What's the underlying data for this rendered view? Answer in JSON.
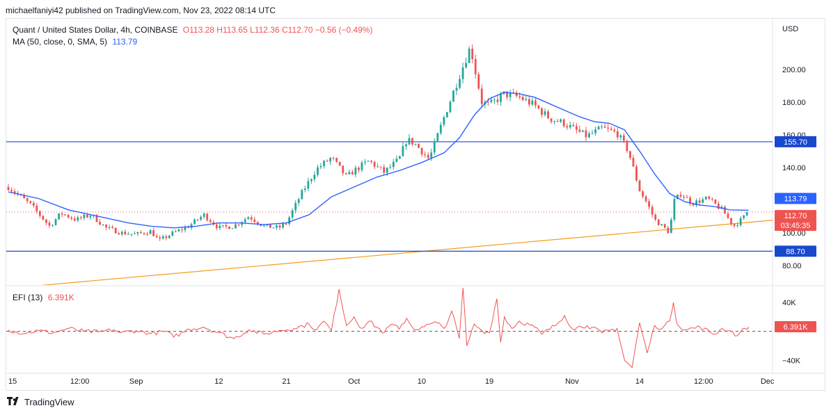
{
  "publisher": "michaelfaniyi42 published on TradingView.com, Nov 23, 2022 08:14 UTC",
  "footer": {
    "brand": "TradingView",
    "logo_icon": "tradingview-logo-icon"
  },
  "legend": {
    "symbol": "Quant / United States Dollar, 4h, COINBASE",
    "open": "O113.28",
    "high": "H113.65",
    "low": "L112.36",
    "close": "C112.70",
    "change": "−0.56 (−0.49%)",
    "ma_label": "MA (50, close, 0, SMA, 5)",
    "ma_value": "113.79",
    "efi_label": "EFI (13)",
    "efi_value": "6.391K"
  },
  "colors": {
    "up": "#26a69a",
    "down": "#ef5350",
    "ma": "#2962ff",
    "trendline": "#f59b1a",
    "level": "#1848cc",
    "efi": "#ef5350"
  },
  "chart_data": [
    {
      "type": "candlestick",
      "title": "Quant / United States Dollar, 4h, COINBASE",
      "currency": "USD",
      "ylim": [
        68,
        231
      ],
      "y_ticks": [
        80,
        100,
        140,
        160,
        180,
        200
      ],
      "y_tick_labels": [
        "80.00",
        "100.00",
        "140.00",
        "160.00",
        "180.00",
        "200.00"
      ],
      "x_ticks": [
        "15",
        "12:00",
        "Sep",
        "12",
        "21",
        "Oct",
        "10",
        "19",
        "Nov",
        "14",
        "12:00",
        "Dec"
      ],
      "x_tick_days": [
        0,
        9.5,
        17,
        28,
        37,
        46,
        55,
        64,
        75,
        84,
        92.5,
        101
      ],
      "x_start_date": "2022-08-15",
      "price_path": [
        [
          0,
          128
        ],
        [
          3,
          117
        ],
        [
          5.5,
          104
        ],
        [
          7,
          112
        ],
        [
          9,
          108
        ],
        [
          11,
          111
        ],
        [
          13,
          103
        ],
        [
          15,
          100
        ],
        [
          17,
          99
        ],
        [
          19,
          101
        ],
        [
          20,
          95
        ],
        [
          22,
          100
        ],
        [
          24,
          104
        ],
        [
          26,
          111
        ],
        [
          28,
          103
        ],
        [
          30,
          104
        ],
        [
          32,
          110
        ],
        [
          34,
          104
        ],
        [
          36,
          103
        ],
        [
          37,
          106
        ],
        [
          39,
          124
        ],
        [
          41,
          139
        ],
        [
          43,
          146
        ],
        [
          45,
          134
        ],
        [
          46,
          138
        ],
        [
          48,
          144
        ],
        [
          50,
          137
        ],
        [
          52,
          145
        ],
        [
          53,
          157
        ],
        [
          54,
          155
        ],
        [
          56,
          145
        ],
        [
          58,
          171
        ],
        [
          60,
          196
        ],
        [
          61.5,
          214
        ],
        [
          62,
          202
        ],
        [
          63,
          180
        ],
        [
          64,
          178
        ],
        [
          66,
          185
        ],
        [
          68,
          183
        ],
        [
          70,
          178
        ],
        [
          72,
          170
        ],
        [
          74,
          167
        ],
        [
          75,
          164
        ],
        [
          77,
          159
        ],
        [
          79,
          164
        ],
        [
          81,
          161
        ],
        [
          82.5,
          150
        ],
        [
          84,
          126
        ],
        [
          85,
          118
        ],
        [
          86,
          108
        ],
        [
          88,
          100
        ],
        [
          88.5,
          119
        ],
        [
          89.5,
          124
        ],
        [
          91,
          118
        ],
        [
          93,
          121
        ],
        [
          95,
          114
        ],
        [
          96.5,
          104
        ],
        [
          98,
          110
        ],
        [
          98.5,
          113
        ]
      ],
      "ma_path": [
        [
          0,
          125
        ],
        [
          4,
          121
        ],
        [
          8,
          114
        ],
        [
          12,
          110
        ],
        [
          16,
          106
        ],
        [
          19,
          104
        ],
        [
          22,
          103
        ],
        [
          25,
          104
        ],
        [
          28,
          106
        ],
        [
          31,
          106
        ],
        [
          34,
          105
        ],
        [
          37,
          106
        ],
        [
          40,
          111
        ],
        [
          43,
          122
        ],
        [
          46,
          128
        ],
        [
          49,
          134
        ],
        [
          52,
          138
        ],
        [
          55,
          143
        ],
        [
          58,
          149
        ],
        [
          60,
          158
        ],
        [
          62,
          172
        ],
        [
          64,
          182
        ],
        [
          66,
          186
        ],
        [
          68,
          185
        ],
        [
          70,
          183
        ],
        [
          72,
          179
        ],
        [
          74,
          175
        ],
        [
          76,
          171
        ],
        [
          78,
          168
        ],
        [
          80,
          167
        ],
        [
          82,
          163
        ],
        [
          84,
          150
        ],
        [
          86,
          136
        ],
        [
          88,
          124
        ],
        [
          90,
          119
        ],
        [
          92,
          117
        ],
        [
          94,
          116
        ],
        [
          96,
          114
        ],
        [
          98.5,
          113.79
        ]
      ],
      "horizontal_levels": [
        155.7,
        88.7
      ],
      "level_labels": [
        "155.70",
        "88.70"
      ],
      "trendline": {
        "from": [
          0,
          66
        ],
        "to": [
          101,
          107.7
        ]
      },
      "price_line": 112.7,
      "price_labels": {
        "ma": "113.79",
        "last": "112.70",
        "countdown": "03:45:35"
      }
    },
    {
      "type": "line",
      "title": "EFI (13)",
      "ylim": [
        -56,
        62
      ],
      "y_tick_labels": [
        "40K",
        "−40K"
      ],
      "y_ticks": [
        40,
        -40
      ],
      "zero_line": 0,
      "last_value_label": "6.391K",
      "series": [
        {
          "values": [
            [
              0,
              2
            ],
            [
              2,
              -3
            ],
            [
              4,
              1
            ],
            [
              6,
              -2
            ],
            [
              8,
              4
            ],
            [
              10,
              0
            ],
            [
              12,
              -1
            ],
            [
              14,
              2
            ],
            [
              15,
              -2
            ],
            [
              17,
              1
            ],
            [
              19,
              -3
            ],
            [
              21,
              0
            ],
            [
              22,
              -8
            ],
            [
              24,
              3
            ],
            [
              26,
              6
            ],
            [
              28,
              -2
            ],
            [
              30,
              -10
            ],
            [
              32,
              2
            ],
            [
              34,
              -4
            ],
            [
              36,
              1
            ],
            [
              38,
              4
            ],
            [
              40,
              10
            ],
            [
              41,
              2
            ],
            [
              42,
              14
            ],
            [
              43,
              1
            ],
            [
              44,
              58
            ],
            [
              45,
              8
            ],
            [
              46,
              20
            ],
            [
              47,
              4
            ],
            [
              48,
              14
            ],
            [
              50,
              -2
            ],
            [
              51,
              10
            ],
            [
              52,
              3
            ],
            [
              53,
              18
            ],
            [
              54,
              2
            ],
            [
              55,
              6
            ],
            [
              57,
              12
            ],
            [
              58,
              4
            ],
            [
              59,
              28
            ],
            [
              60,
              -10
            ],
            [
              60.5,
              60
            ],
            [
              61,
              -20
            ],
            [
              62,
              10
            ],
            [
              63,
              1
            ],
            [
              64,
              -2
            ],
            [
              65,
              45
            ],
            [
              65.5,
              -15
            ],
            [
              66,
              20
            ],
            [
              67,
              4
            ],
            [
              68,
              14
            ],
            [
              70,
              6
            ],
            [
              71,
              -4
            ],
            [
              73,
              10
            ],
            [
              74,
              22
            ],
            [
              75,
              4
            ],
            [
              77,
              8
            ],
            [
              79,
              -2
            ],
            [
              81,
              4
            ],
            [
              82,
              -40
            ],
            [
              83,
              -50
            ],
            [
              84,
              12
            ],
            [
              85,
              -30
            ],
            [
              86,
              8
            ],
            [
              87,
              4
            ],
            [
              88,
              14
            ],
            [
              88.5,
              40
            ],
            [
              89,
              10
            ],
            [
              90,
              2
            ],
            [
              92,
              6
            ],
            [
              94,
              -4
            ],
            [
              95,
              4
            ],
            [
              96,
              1
            ],
            [
              97,
              -6
            ],
            [
              98,
              4
            ],
            [
              98.5,
              6.391
            ]
          ]
        }
      ]
    }
  ]
}
